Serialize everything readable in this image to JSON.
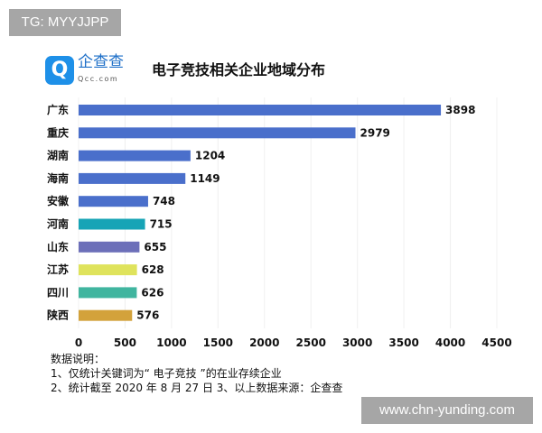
{
  "watermarks": {
    "top": "TG: MYYJJPP",
    "bottom": "www.chn-yunding.com"
  },
  "logo": {
    "icon": "qcc-logo-icon",
    "brand": "企查查",
    "domain": "Qcc.com"
  },
  "chart_data": {
    "type": "bar",
    "orientation": "horizontal",
    "title": "电子竞技相关企业地域分布",
    "categories": [
      "广东",
      "重庆",
      "湖南",
      "海南",
      "安徽",
      "河南",
      "山东",
      "江苏",
      "四川",
      "陕西"
    ],
    "values": [
      3898,
      2979,
      1204,
      1149,
      748,
      715,
      655,
      628,
      626,
      576
    ],
    "colors": [
      "#4a6fcb",
      "#4a6fcb",
      "#4a6fcb",
      "#4a6fcb",
      "#4a6fcb",
      "#17a4b6",
      "#6c6fb9",
      "#dfe35c",
      "#40b59f",
      "#d3a23b"
    ],
    "xlim": [
      0,
      4500
    ],
    "xticks": [
      0,
      500,
      1000,
      1500,
      2000,
      2500,
      3000,
      3500,
      4000,
      4500
    ],
    "grid": true,
    "data_labels": true
  },
  "notes": {
    "heading": "数据说明：",
    "line1": "1、仅统计关键词为“ 电子竞技 ”的在业存续企业",
    "line2": "2、统计截至 2020 年 8 月 27 日  3、以上数据来源：企查查"
  }
}
